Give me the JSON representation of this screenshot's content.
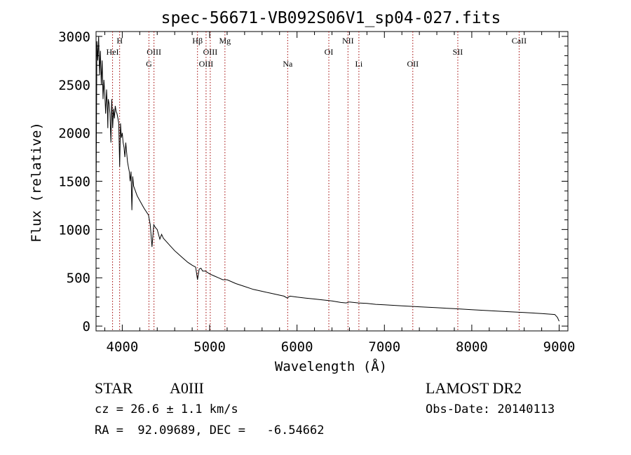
{
  "chart_data": {
    "type": "line",
    "title": "spec-56671-VB092S06V1_sp04-027.fits",
    "xlabel": "Wavelength (Å)",
    "ylabel": "Flux (relative)",
    "xlim": [
      3700,
      9100
    ],
    "ylim": [
      -50,
      3050
    ],
    "x_ticks": [
      4000,
      5000,
      6000,
      7000,
      8000,
      9000
    ],
    "y_ticks": [
      0,
      500,
      1000,
      1500,
      2000,
      2500,
      3000
    ],
    "grid": false,
    "series": [
      {
        "x": [
          3700,
          3710,
          3720,
          3730,
          3740,
          3750,
          3760,
          3770,
          3780,
          3790,
          3800,
          3810,
          3820,
          3830,
          3835,
          3840,
          3850,
          3860,
          3870,
          3880,
          3890,
          3900,
          3910,
          3920,
          3930,
          3940,
          3950,
          3960,
          3970,
          3980,
          3990,
          4000,
          4010,
          4020,
          4030,
          4040,
          4050,
          4060,
          4070,
          4080,
          4090,
          4100,
          4110,
          4120,
          4130,
          4150,
          4170,
          4200,
          4250,
          4300,
          4320,
          4340,
          4360,
          4380,
          4400,
          4430,
          4450,
          4470,
          4500,
          4550,
          4600,
          4650,
          4700,
          4750,
          4800,
          4840,
          4861,
          4880,
          4900,
          4920,
          4950,
          5000,
          5050,
          5100,
          5150,
          5200,
          5300,
          5400,
          5500,
          5600,
          5700,
          5800,
          5850,
          5890,
          5900,
          5920,
          6000,
          6100,
          6200,
          6300,
          6400,
          6500,
          6562,
          6600,
          6700,
          6800,
          6900,
          7000,
          7200,
          7400,
          7600,
          7800,
          8000,
          8200,
          8400,
          8600,
          8800,
          8950,
          8980,
          9000
        ],
        "y": [
          1250,
          2950,
          2750,
          3000,
          2600,
          2850,
          2500,
          2750,
          2350,
          2550,
          2400,
          2200,
          2450,
          2250,
          2050,
          2350,
          2300,
          2200,
          1900,
          2350,
          2050,
          2250,
          2150,
          2280,
          2220,
          2200,
          2150,
          2100,
          1650,
          2100,
          1950,
          2000,
          1900,
          1850,
          1750,
          1900,
          1800,
          1700,
          1650,
          1600,
          1500,
          1600,
          1200,
          1550,
          1450,
          1400,
          1350,
          1300,
          1220,
          1150,
          1050,
          820,
          1050,
          1020,
          1000,
          900,
          950,
          910,
          880,
          830,
          780,
          740,
          700,
          660,
          630,
          610,
          480,
          590,
          600,
          570,
          570,
          540,
          520,
          500,
          480,
          480,
          440,
          410,
          380,
          360,
          340,
          320,
          310,
          290,
          300,
          310,
          300,
          290,
          280,
          270,
          260,
          245,
          240,
          250,
          240,
          235,
          225,
          220,
          210,
          200,
          190,
          180,
          170,
          160,
          150,
          140,
          130,
          120,
          90,
          50
        ]
      }
    ],
    "lines": [
      {
        "label": "HeI",
        "x": 3889,
        "row": 2
      },
      {
        "label": "H",
        "x": 3970,
        "row": 1
      },
      {
        "label": "G",
        "x": 4305,
        "row": 3
      },
      {
        "label": "OIII",
        "x": 4363,
        "row": 2
      },
      {
        "label": "Hβ",
        "x": 4861,
        "row": 1
      },
      {
        "label": "OIII",
        "x": 4959,
        "row": 3
      },
      {
        "label": "OIII",
        "x": 5007,
        "row": 2
      },
      {
        "label": "Mg",
        "x": 5175,
        "row": 1
      },
      {
        "label": "Na",
        "x": 5893,
        "row": 3
      },
      {
        "label": "OI",
        "x": 6364,
        "row": 2
      },
      {
        "label": "NII",
        "x": 6583,
        "row": 1
      },
      {
        "label": "Li",
        "x": 6708,
        "row": 3
      },
      {
        "label": "OII",
        "x": 7325,
        "row": 3
      },
      {
        "label": "SII",
        "x": 7840,
        "row": 2
      },
      {
        "label": "CaII",
        "x": 8542,
        "row": 1
      }
    ]
  },
  "info": {
    "object_class": "STAR",
    "subclass": "A0III",
    "cz": "cz = 26.6 ± 1.1 km/s",
    "coords": "RA =  92.09689, DEC =   -6.54662",
    "survey": "LAMOST DR2",
    "obs_date": "Obs-Date: 20140113"
  }
}
